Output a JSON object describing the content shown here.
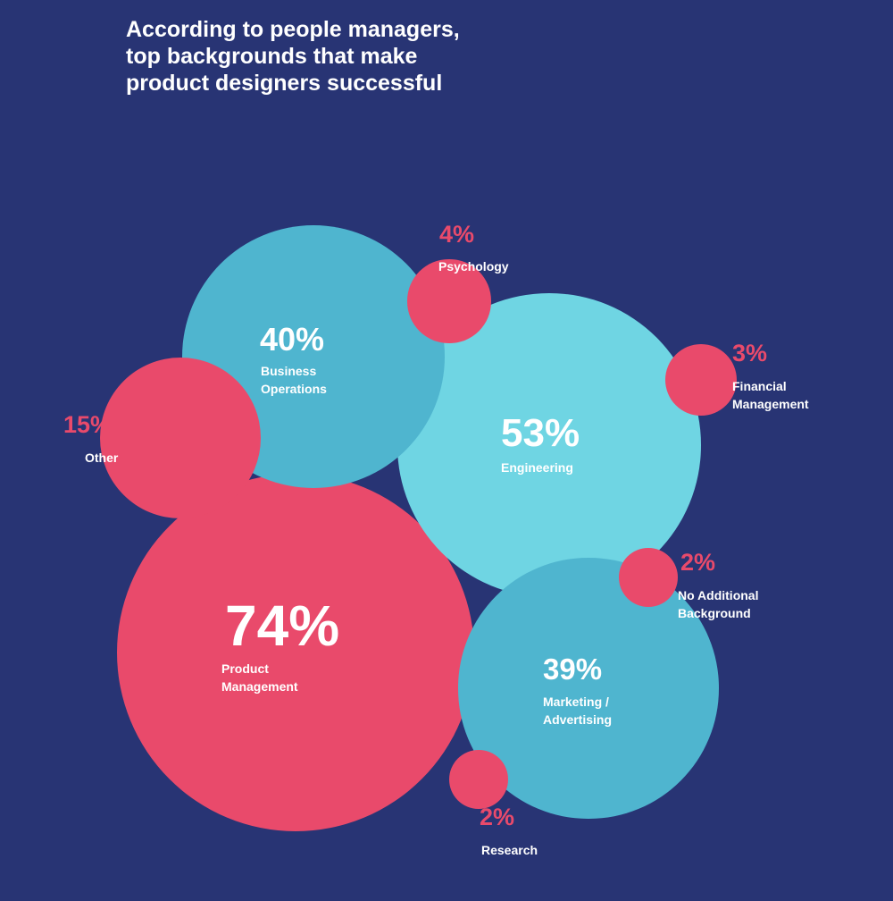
{
  "chart_data": {
    "type": "bubble",
    "title_lines": [
      "According to people managers,",
      "top backgrounds that make",
      "product designers successful"
    ],
    "unit": "%",
    "series": [
      {
        "name": "Product Management",
        "label_lines": [
          "Product",
          "Management"
        ],
        "value": 74,
        "color": "#e94a6b"
      },
      {
        "name": "Engineering",
        "label_lines": [
          "Engineering"
        ],
        "value": 53,
        "color": "#6fd5e3"
      },
      {
        "name": "Business Operations",
        "label_lines": [
          "Business",
          "Operations"
        ],
        "value": 40,
        "color": "#4fb5cf"
      },
      {
        "name": "Marketing / Advertising",
        "label_lines": [
          "Marketing /",
          "Advertising"
        ],
        "value": 39,
        "color": "#4fb5cf"
      },
      {
        "name": "Other",
        "label_lines": [
          "Other"
        ],
        "value": 15,
        "color": "#e94a6b"
      },
      {
        "name": "Psychology",
        "label_lines": [
          "Psychology"
        ],
        "value": 4,
        "color": "#e94a6b"
      },
      {
        "name": "Financial Management",
        "label_lines": [
          "Financial",
          "Management"
        ],
        "value": 3,
        "color": "#e94a6b"
      },
      {
        "name": "No Additional Background",
        "label_lines": [
          "No Additional",
          "Background"
        ],
        "value": 2,
        "color": "#e94a6b"
      },
      {
        "name": "Research",
        "label_lines": [
          "Research"
        ],
        "value": 2,
        "color": "#e94a6b"
      }
    ]
  }
}
